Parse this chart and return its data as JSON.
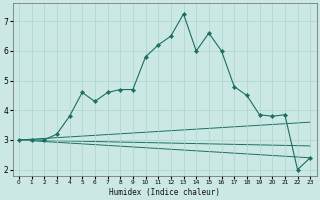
{
  "title": "",
  "xlabel": "Humidex (Indice chaleur)",
  "bg_color": "#cce8e4",
  "grid_color": "#aad4ce",
  "line_color": "#1a6e62",
  "xlim": [
    -0.5,
    23.5
  ],
  "ylim": [
    1.8,
    7.6
  ],
  "yticks": [
    2,
    3,
    4,
    5,
    6,
    7
  ],
  "xticks": [
    0,
    1,
    2,
    3,
    4,
    5,
    6,
    7,
    8,
    9,
    10,
    11,
    12,
    13,
    14,
    15,
    16,
    17,
    18,
    19,
    20,
    21,
    22,
    23
  ],
  "xtick_labels": [
    "0",
    "1",
    "2",
    "3",
    "4",
    "5",
    "6",
    "7",
    "8",
    "9",
    "10",
    "11",
    "12",
    "13",
    "14",
    "15",
    "16",
    "17",
    "18",
    "19",
    "20",
    "21",
    "22",
    "23"
  ],
  "main_series": {
    "x": [
      0,
      1,
      2,
      3,
      4,
      5,
      6,
      7,
      8,
      9,
      10,
      11,
      12,
      13,
      14,
      15,
      16,
      17,
      18,
      19,
      20,
      21,
      22,
      23
    ],
    "y": [
      3.0,
      3.0,
      3.0,
      3.2,
      3.8,
      4.6,
      4.3,
      4.6,
      4.7,
      4.7,
      5.8,
      6.2,
      6.5,
      7.25,
      6.0,
      6.6,
      6.0,
      4.8,
      4.5,
      3.85,
      3.8,
      3.85,
      2.0,
      2.4
    ]
  },
  "diagonal_lines": [
    {
      "x0": 0,
      "y0": 3.0,
      "x1": 23,
      "y1": 3.6
    },
    {
      "x0": 0,
      "y0": 3.0,
      "x1": 23,
      "y1": 2.8
    },
    {
      "x0": 0,
      "y0": 3.0,
      "x1": 23,
      "y1": 2.4
    }
  ]
}
